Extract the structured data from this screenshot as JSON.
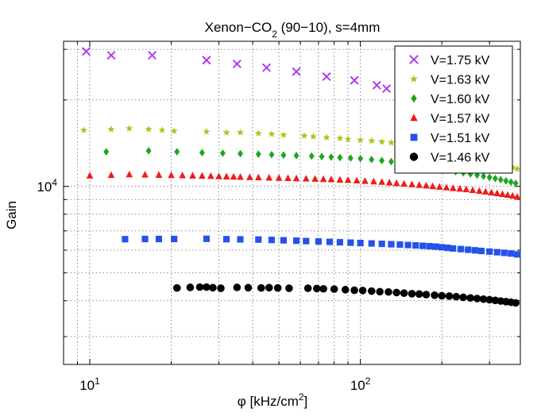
{
  "chart_data": {
    "type": "scatter",
    "title": "Xenon−CO₂ (90−10), s=4mm",
    "title_parts": {
      "main": "Xenon−CO",
      "subscript": "2",
      "suffix": " (90−10), s=4mm"
    },
    "xlabel": "φ [kHz/cm²]",
    "xlabel_parts": {
      "main": "φ [kHz/cm",
      "superscript": "2",
      "suffix": "]"
    },
    "ylabel": "Gain",
    "x_scale": "log",
    "y_scale": "log",
    "xlim": [
      8,
      390
    ],
    "ylim": [
      2400,
      32000
    ],
    "x_ticks": [
      {
        "value": 10,
        "base": "10",
        "exponent": "1"
      },
      {
        "value": 100,
        "base": "10",
        "exponent": "2"
      }
    ],
    "y_ticks": [
      {
        "value": 10000,
        "base": "10",
        "exponent": "4"
      }
    ],
    "grid": true,
    "legend_position": "top-right",
    "colors": {
      "axis": "#000000",
      "grid": "#7f7f7f"
    },
    "series": [
      {
        "name": "V=1.75 kV",
        "marker": "x",
        "color": "#b23bf0",
        "x": [
          9.7,
          12,
          17,
          27,
          35,
          45,
          58,
          75,
          95,
          115,
          125,
          155
        ],
        "y": [
          29500,
          28600,
          28600,
          27500,
          26700,
          25900,
          25100,
          24100,
          23400,
          22500,
          21900,
          21100
        ]
      },
      {
        "name": "V=1.63 kV",
        "marker": "star",
        "color": "#a2c91c",
        "x": [
          9.5,
          12,
          14,
          16.5,
          18.5,
          20.5,
          27,
          32,
          36,
          42,
          47,
          52,
          62,
          67,
          75,
          84,
          90,
          100,
          110,
          120,
          130,
          140,
          150,
          160,
          170,
          180,
          190,
          200,
          215,
          230,
          245,
          260,
          275,
          290,
          305,
          320,
          335,
          350,
          365,
          380
        ],
        "y": [
          15700,
          15800,
          15900,
          15800,
          15700,
          15600,
          15500,
          15400,
          15400,
          15300,
          15200,
          15100,
          15000,
          14900,
          14800,
          14700,
          14600,
          14500,
          14400,
          14300,
          14200,
          14100,
          14000,
          13900,
          13750,
          13600,
          13450,
          13300,
          13150,
          13000,
          12850,
          12700,
          12550,
          12400,
          12250,
          12100,
          11950,
          11800,
          11650,
          11500
        ]
      },
      {
        "name": "V=1.60 kV",
        "marker": "diamond",
        "color": "#1fa51f",
        "x": [
          11.5,
          16.5,
          21,
          26,
          31,
          36,
          42,
          47,
          52,
          58,
          66,
          72,
          78,
          84,
          92,
          100,
          110,
          120,
          130,
          140,
          150,
          160,
          170,
          180,
          195,
          210,
          225,
          240,
          255,
          270,
          285,
          300,
          315,
          330,
          345,
          360,
          375
        ],
        "y": [
          13200,
          13300,
          13200,
          13100,
          13050,
          13000,
          12950,
          12900,
          12850,
          12800,
          12750,
          12700,
          12650,
          12600,
          12550,
          12500,
          12400,
          12300,
          12200,
          12100,
          12000,
          11900,
          11800,
          11700,
          11550,
          11400,
          11250,
          11150,
          11050,
          10950,
          10850,
          10750,
          10650,
          10550,
          10450,
          10350,
          10250
        ]
      },
      {
        "name": "V=1.57 kV",
        "marker": "triangle",
        "color": "#ee1c1c",
        "x": [
          10,
          12,
          14,
          16,
          18,
          20,
          22,
          24,
          26,
          28,
          30,
          32,
          34,
          36,
          39,
          42,
          46,
          50,
          54,
          58,
          63,
          68,
          73,
          78,
          84,
          90,
          97,
          104,
          112,
          120,
          128,
          136,
          145,
          155,
          165,
          175,
          185,
          196,
          208,
          220,
          233,
          246,
          260,
          275,
          290,
          305,
          320,
          335,
          350,
          365,
          380
        ],
        "y": [
          10900,
          10950,
          11000,
          10980,
          10960,
          10940,
          10920,
          10900,
          10880,
          10860,
          10840,
          10820,
          10800,
          10780,
          10760,
          10740,
          10720,
          10700,
          10680,
          10660,
          10640,
          10620,
          10600,
          10580,
          10550,
          10520,
          10480,
          10440,
          10400,
          10360,
          10310,
          10260,
          10210,
          10160,
          10110,
          10060,
          10010,
          9960,
          9910,
          9860,
          9810,
          9760,
          9700,
          9640,
          9580,
          9520,
          9460,
          9400,
          9340,
          9280,
          9200
        ]
      },
      {
        "name": "V=1.51 kV",
        "marker": "square",
        "color": "#2553e9",
        "x": [
          13.5,
          16,
          18,
          20.5,
          27,
          32,
          36,
          42,
          47,
          52,
          58,
          63,
          70,
          77,
          84,
          92,
          100,
          110,
          120,
          130,
          140,
          150,
          160,
          170,
          180,
          190,
          200,
          210,
          220,
          235,
          250,
          265,
          280,
          300,
          320,
          340,
          360,
          380
        ],
        "y": [
          6550,
          6560,
          6560,
          6560,
          6570,
          6550,
          6540,
          6530,
          6510,
          6490,
          6470,
          6450,
          6430,
          6410,
          6390,
          6370,
          6350,
          6330,
          6310,
          6290,
          6270,
          6250,
          6230,
          6210,
          6190,
          6170,
          6140,
          6110,
          6080,
          6050,
          6020,
          5990,
          5960,
          5930,
          5900,
          5870,
          5840,
          5800
        ]
      },
      {
        "name": "V=1.46 kV",
        "marker": "circle",
        "color": "#000000",
        "x": [
          21,
          23.5,
          25.5,
          27,
          28.5,
          30.5,
          35,
          38.5,
          43,
          46,
          49.5,
          54.5,
          64,
          69,
          73,
          80,
          88,
          95,
          102,
          110,
          118,
          127,
          136,
          145,
          155,
          165,
          175,
          188,
          200,
          213,
          226,
          240,
          255,
          270,
          285,
          300,
          315,
          330,
          345,
          360,
          375
        ],
        "y": [
          4430,
          4450,
          4460,
          4460,
          4440,
          4420,
          4450,
          4440,
          4430,
          4440,
          4430,
          4420,
          4420,
          4410,
          4400,
          4390,
          4370,
          4350,
          4340,
          4320,
          4300,
          4290,
          4270,
          4250,
          4230,
          4220,
          4200,
          4180,
          4160,
          4150,
          4130,
          4110,
          4090,
          4070,
          4050,
          4030,
          4010,
          3990,
          3970,
          3950,
          3930
        ]
      }
    ]
  }
}
